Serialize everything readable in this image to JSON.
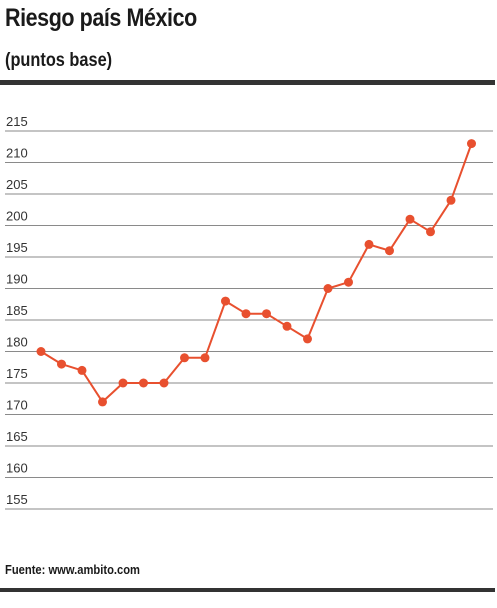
{
  "header": {
    "title": "Riesgo país México",
    "subtitle": "(puntos base)"
  },
  "footer": {
    "source": "Fuente: www.ambito.com"
  },
  "colors": {
    "line": "#e8502f",
    "grid": "#8a8a8a",
    "rule": "#333333"
  },
  "chart_data": {
    "type": "line",
    "title": "Riesgo país México",
    "subtitle": "(puntos base)",
    "xlabel": "",
    "ylabel": "",
    "ylim": [
      155,
      215
    ],
    "yticks": [
      155,
      160,
      165,
      170,
      175,
      180,
      185,
      190,
      195,
      200,
      205,
      210,
      215
    ],
    "grid": true,
    "legend": "none",
    "series": [
      {
        "values": [
          180,
          178,
          177,
          172,
          175,
          175,
          175,
          179,
          179,
          188,
          186,
          186,
          184,
          182,
          190,
          191,
          197,
          196,
          201,
          199,
          204,
          213
        ]
      }
    ]
  }
}
